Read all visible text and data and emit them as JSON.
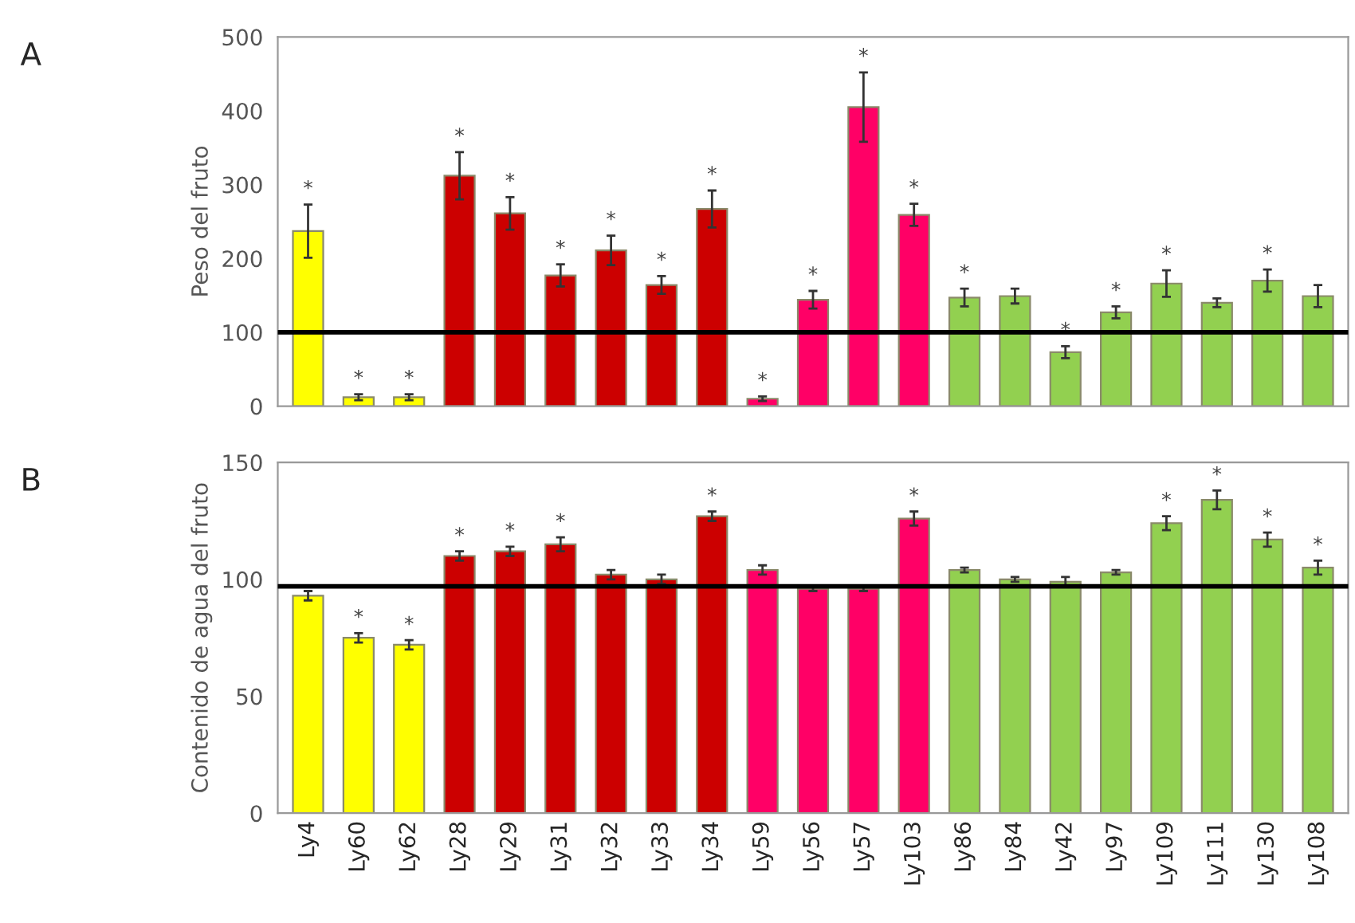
{
  "chart_data": [
    {
      "type": "bar",
      "title": "A",
      "ylabel": "Peso del fruto",
      "categories": [
        null,
        null,
        null,
        null,
        null,
        null,
        null,
        null,
        null,
        null,
        null,
        null,
        null,
        null,
        null,
        null,
        null,
        null,
        null,
        null,
        null
      ],
      "values": [
        237,
        12,
        12,
        312,
        261,
        177,
        211,
        164,
        267,
        10,
        144,
        405,
        259,
        147,
        149,
        73,
        127,
        166,
        140,
        170,
        149
      ],
      "errors": [
        36,
        4,
        4,
        32,
        22,
        15,
        20,
        12,
        25,
        3,
        12,
        47,
        15,
        12,
        10,
        8,
        8,
        18,
        6,
        15,
        15
      ],
      "colors": [
        "#ffff00",
        "#ffff00",
        "#ffff00",
        "#cc0000",
        "#cc0000",
        "#cc0000",
        "#cc0000",
        "#cc0000",
        "#cc0000",
        "#ff0066",
        "#ff0066",
        "#ff0066",
        "#ff0066",
        "#92d050",
        "#92d050",
        "#92d050",
        "#92d050",
        "#92d050",
        "#92d050",
        "#92d050",
        "#92d050"
      ],
      "value_labels": [
        "*",
        "*",
        "*",
        "*",
        "*",
        "*",
        "*",
        "*",
        "*",
        "*",
        "*",
        "*",
        "*",
        "*",
        null,
        "*",
        "*",
        "*",
        null,
        "*",
        null
      ],
      "ylim": [
        0,
        500
      ],
      "yticks": [
        0,
        100,
        200,
        300,
        400,
        500
      ],
      "ref_lines": [
        {
          "axis": "y",
          "value": 100,
          "color": "#000000"
        }
      ],
      "tick_labels": "y",
      "grid": false,
      "legend": false
    },
    {
      "type": "bar",
      "title": "B",
      "ylabel": "Contenido de agua del fruto",
      "categories": [
        "Ly4",
        "Ly60",
        "Ly62",
        "Ly28",
        "Ly29",
        "Ly31",
        "Ly32",
        "Ly33",
        "Ly34",
        "Ly59",
        "Ly56",
        "Ly57",
        "Ly103",
        "Ly86",
        "Ly84",
        "Ly42",
        "Ly97",
        "Ly109",
        "Ly111",
        "Ly130",
        "Ly108"
      ],
      "values": [
        93,
        75,
        72,
        110,
        112,
        115,
        102,
        100,
        127,
        104,
        96,
        96,
        126,
        104,
        100,
        99,
        103,
        124,
        134,
        117,
        105
      ],
      "errors": [
        2,
        2,
        2,
        2,
        2,
        3,
        2,
        2,
        2,
        2,
        1,
        1,
        3,
        1,
        1,
        2,
        1,
        3,
        4,
        3,
        3
      ],
      "colors": [
        "#ffff00",
        "#ffff00",
        "#ffff00",
        "#cc0000",
        "#cc0000",
        "#cc0000",
        "#cc0000",
        "#cc0000",
        "#cc0000",
        "#ff0066",
        "#ff0066",
        "#ff0066",
        "#ff0066",
        "#92d050",
        "#92d050",
        "#92d050",
        "#92d050",
        "#92d050",
        "#92d050",
        "#92d050",
        "#92d050"
      ],
      "value_labels": [
        null,
        "*",
        "*",
        "*",
        "*",
        "*",
        null,
        null,
        "*",
        null,
        null,
        null,
        "*",
        null,
        null,
        null,
        null,
        "*",
        "*",
        "*",
        "*"
      ],
      "ylim": [
        0,
        150
      ],
      "yticks": [
        0,
        50,
        100,
        150
      ],
      "ref_lines": [
        {
          "axis": "y",
          "value": 97,
          "color": "#000000"
        }
      ],
      "grid": false,
      "legend": false
    }
  ]
}
